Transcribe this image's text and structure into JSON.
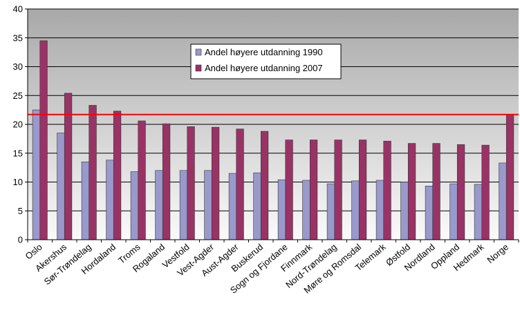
{
  "chart_data": {
    "type": "bar",
    "categories": [
      "Oslo",
      "Akershus",
      "Sør-Trøndelag",
      "Hordaland",
      "Troms",
      "Rogaland",
      "Vestfold",
      "Vest-Agder",
      "Aust-Agder",
      "Buskerud",
      "Sogn og Fjordane",
      "Finnmark",
      "Nord-Trøndelag",
      "Møre og Romsdal",
      "Telemark",
      "Østfold",
      "Nordland",
      "Oppland",
      "Hedmark",
      "Norge"
    ],
    "series": [
      {
        "name": "Andel høyere utdanning 1990",
        "color": "#9999cc",
        "values": [
          22.5,
          18.5,
          13.5,
          13.8,
          11.8,
          12.0,
          12.0,
          12.0,
          11.5,
          11.6,
          10.4,
          10.3,
          9.7,
          10.2,
          10.3,
          10.0,
          9.3,
          9.7,
          9.6,
          13.3
        ]
      },
      {
        "name": "Andel høyere utdanning 2007",
        "color": "#993366",
        "values": [
          34.5,
          25.4,
          23.3,
          22.3,
          20.6,
          20.1,
          19.6,
          19.5,
          19.2,
          18.8,
          17.3,
          17.3,
          17.3,
          17.3,
          17.1,
          16.7,
          16.7,
          16.5,
          16.4,
          21.7
        ]
      }
    ],
    "reference_line": {
      "value": 21.7,
      "color": "#ff0000"
    },
    "ylim": [
      0,
      40
    ],
    "yticks": [
      0,
      5,
      10,
      15,
      20,
      25,
      30,
      35,
      40
    ],
    "grid": true,
    "legend": "top-center",
    "plot_background": "#c0c0c0"
  }
}
